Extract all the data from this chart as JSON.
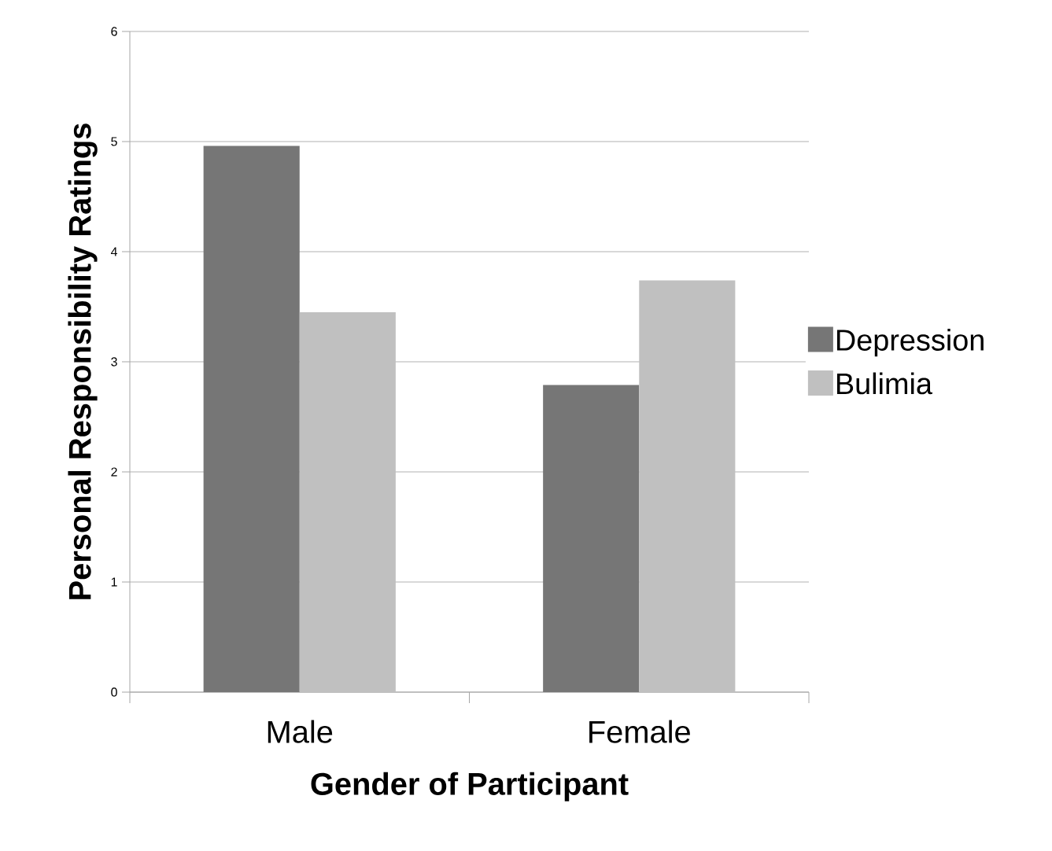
{
  "chart_data": {
    "type": "bar",
    "xlabel": "Gender of Participant",
    "ylabel": "Personal Responsibility Ratings",
    "categories": [
      "Male",
      "Female"
    ],
    "series": [
      {
        "name": "Depression",
        "color": "#767676",
        "values": [
          4.96,
          2.79
        ]
      },
      {
        "name": "Bulimia",
        "color": "#c0c0c0",
        "values": [
          3.45,
          3.74
        ]
      }
    ],
    "ylim": [
      0,
      6
    ],
    "yticks": [
      0,
      1,
      2,
      3,
      4,
      5,
      6
    ],
    "grid": "y",
    "legend": "right"
  }
}
